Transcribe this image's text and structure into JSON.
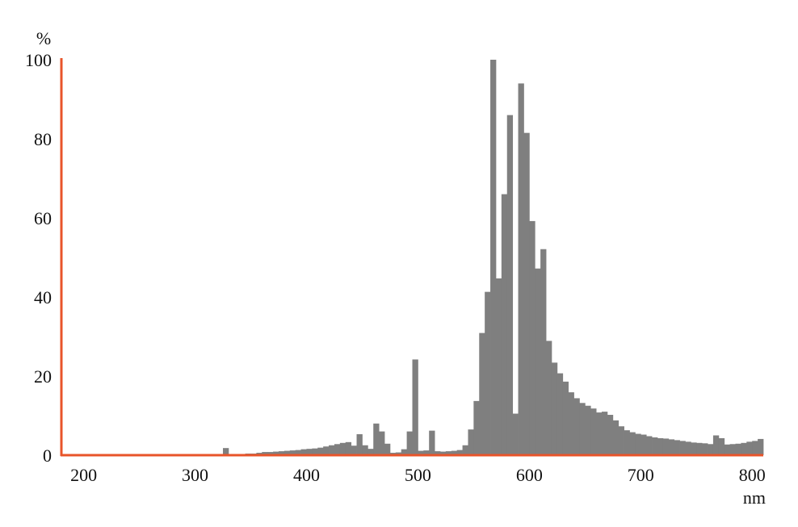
{
  "chart_data": {
    "type": "bar",
    "title": "",
    "xlabel": "nm",
    "ylabel": "%",
    "xlim": [
      180,
      810
    ],
    "ylim": [
      0,
      100
    ],
    "x_ticks": [
      200,
      300,
      400,
      500,
      600,
      700,
      800
    ],
    "y_ticks": [
      0,
      20,
      40,
      60,
      80,
      100
    ],
    "grid": false,
    "legend": "none",
    "bar_width_nm": 5,
    "colors": {
      "bars": "#7f7f7f",
      "axes": "#e8542a",
      "text": "#111111"
    },
    "series": [
      {
        "x": [
          180,
          185,
          190,
          195,
          200,
          205,
          210,
          215,
          220,
          225,
          230,
          235,
          240,
          245,
          250,
          255,
          260,
          265,
          270,
          275,
          280,
          285,
          290,
          295,
          300,
          305,
          310,
          315,
          320,
          325,
          330,
          335,
          340,
          345,
          350,
          355,
          360,
          365,
          370,
          375,
          380,
          385,
          390,
          395,
          400,
          405,
          410,
          415,
          420,
          425,
          430,
          435,
          440,
          445,
          450,
          455,
          460,
          465,
          470,
          475,
          480,
          485,
          490,
          495,
          500,
          505,
          510,
          515,
          520,
          525,
          530,
          535,
          540,
          545,
          550,
          555,
          560,
          565,
          570,
          575,
          580,
          585,
          590,
          595,
          600,
          605,
          610,
          615,
          620,
          625,
          630,
          635,
          640,
          645,
          650,
          655,
          660,
          665,
          670,
          675,
          680,
          685,
          690,
          695,
          700,
          705,
          710,
          715,
          720,
          725,
          730,
          735,
          740,
          745,
          750,
          755,
          760,
          765,
          770,
          775,
          780,
          785,
          790,
          795,
          800,
          805
        ],
        "values": [
          0,
          0,
          0,
          0,
          0,
          0,
          0,
          0,
          0,
          0,
          0,
          0,
          0,
          0,
          0,
          0,
          0,
          0,
          0,
          0,
          0,
          0,
          0,
          0,
          0,
          0,
          0,
          0,
          0,
          1.8,
          0.3,
          0.3,
          0.3,
          0.4,
          0.4,
          0.6,
          0.8,
          0.8,
          0.9,
          1.0,
          1.1,
          1.2,
          1.3,
          1.5,
          1.6,
          1.7,
          1.9,
          2.2,
          2.5,
          2.8,
          3.1,
          3.3,
          2.4,
          5.3,
          2.5,
          1.6,
          8.0,
          6.0,
          2.9,
          0.6,
          0.7,
          1.5,
          6.0,
          24.2,
          1.1,
          1.2,
          6.2,
          1.0,
          0.9,
          1.0,
          1.1,
          1.3,
          2.5,
          6.5,
          13.7,
          30.9,
          41.3,
          100,
          44.7,
          66.0,
          86.0,
          10.5,
          94.0,
          81.5,
          59.2,
          47.2,
          52.1,
          28.9,
          23.4,
          20.7,
          18.6,
          15.9,
          14.4,
          13.2,
          12.5,
          11.8,
          10.8,
          11.0,
          10.2,
          8.8,
          7.3,
          6.3,
          5.8,
          5.4,
          5.2,
          4.8,
          4.5,
          4.3,
          4.2,
          4.0,
          3.8,
          3.6,
          3.4,
          3.2,
          3.1,
          3.0,
          2.8,
          5.0,
          4.3,
          2.7,
          2.8,
          2.9,
          3.1,
          3.4,
          3.6,
          4.1
        ]
      }
    ]
  }
}
